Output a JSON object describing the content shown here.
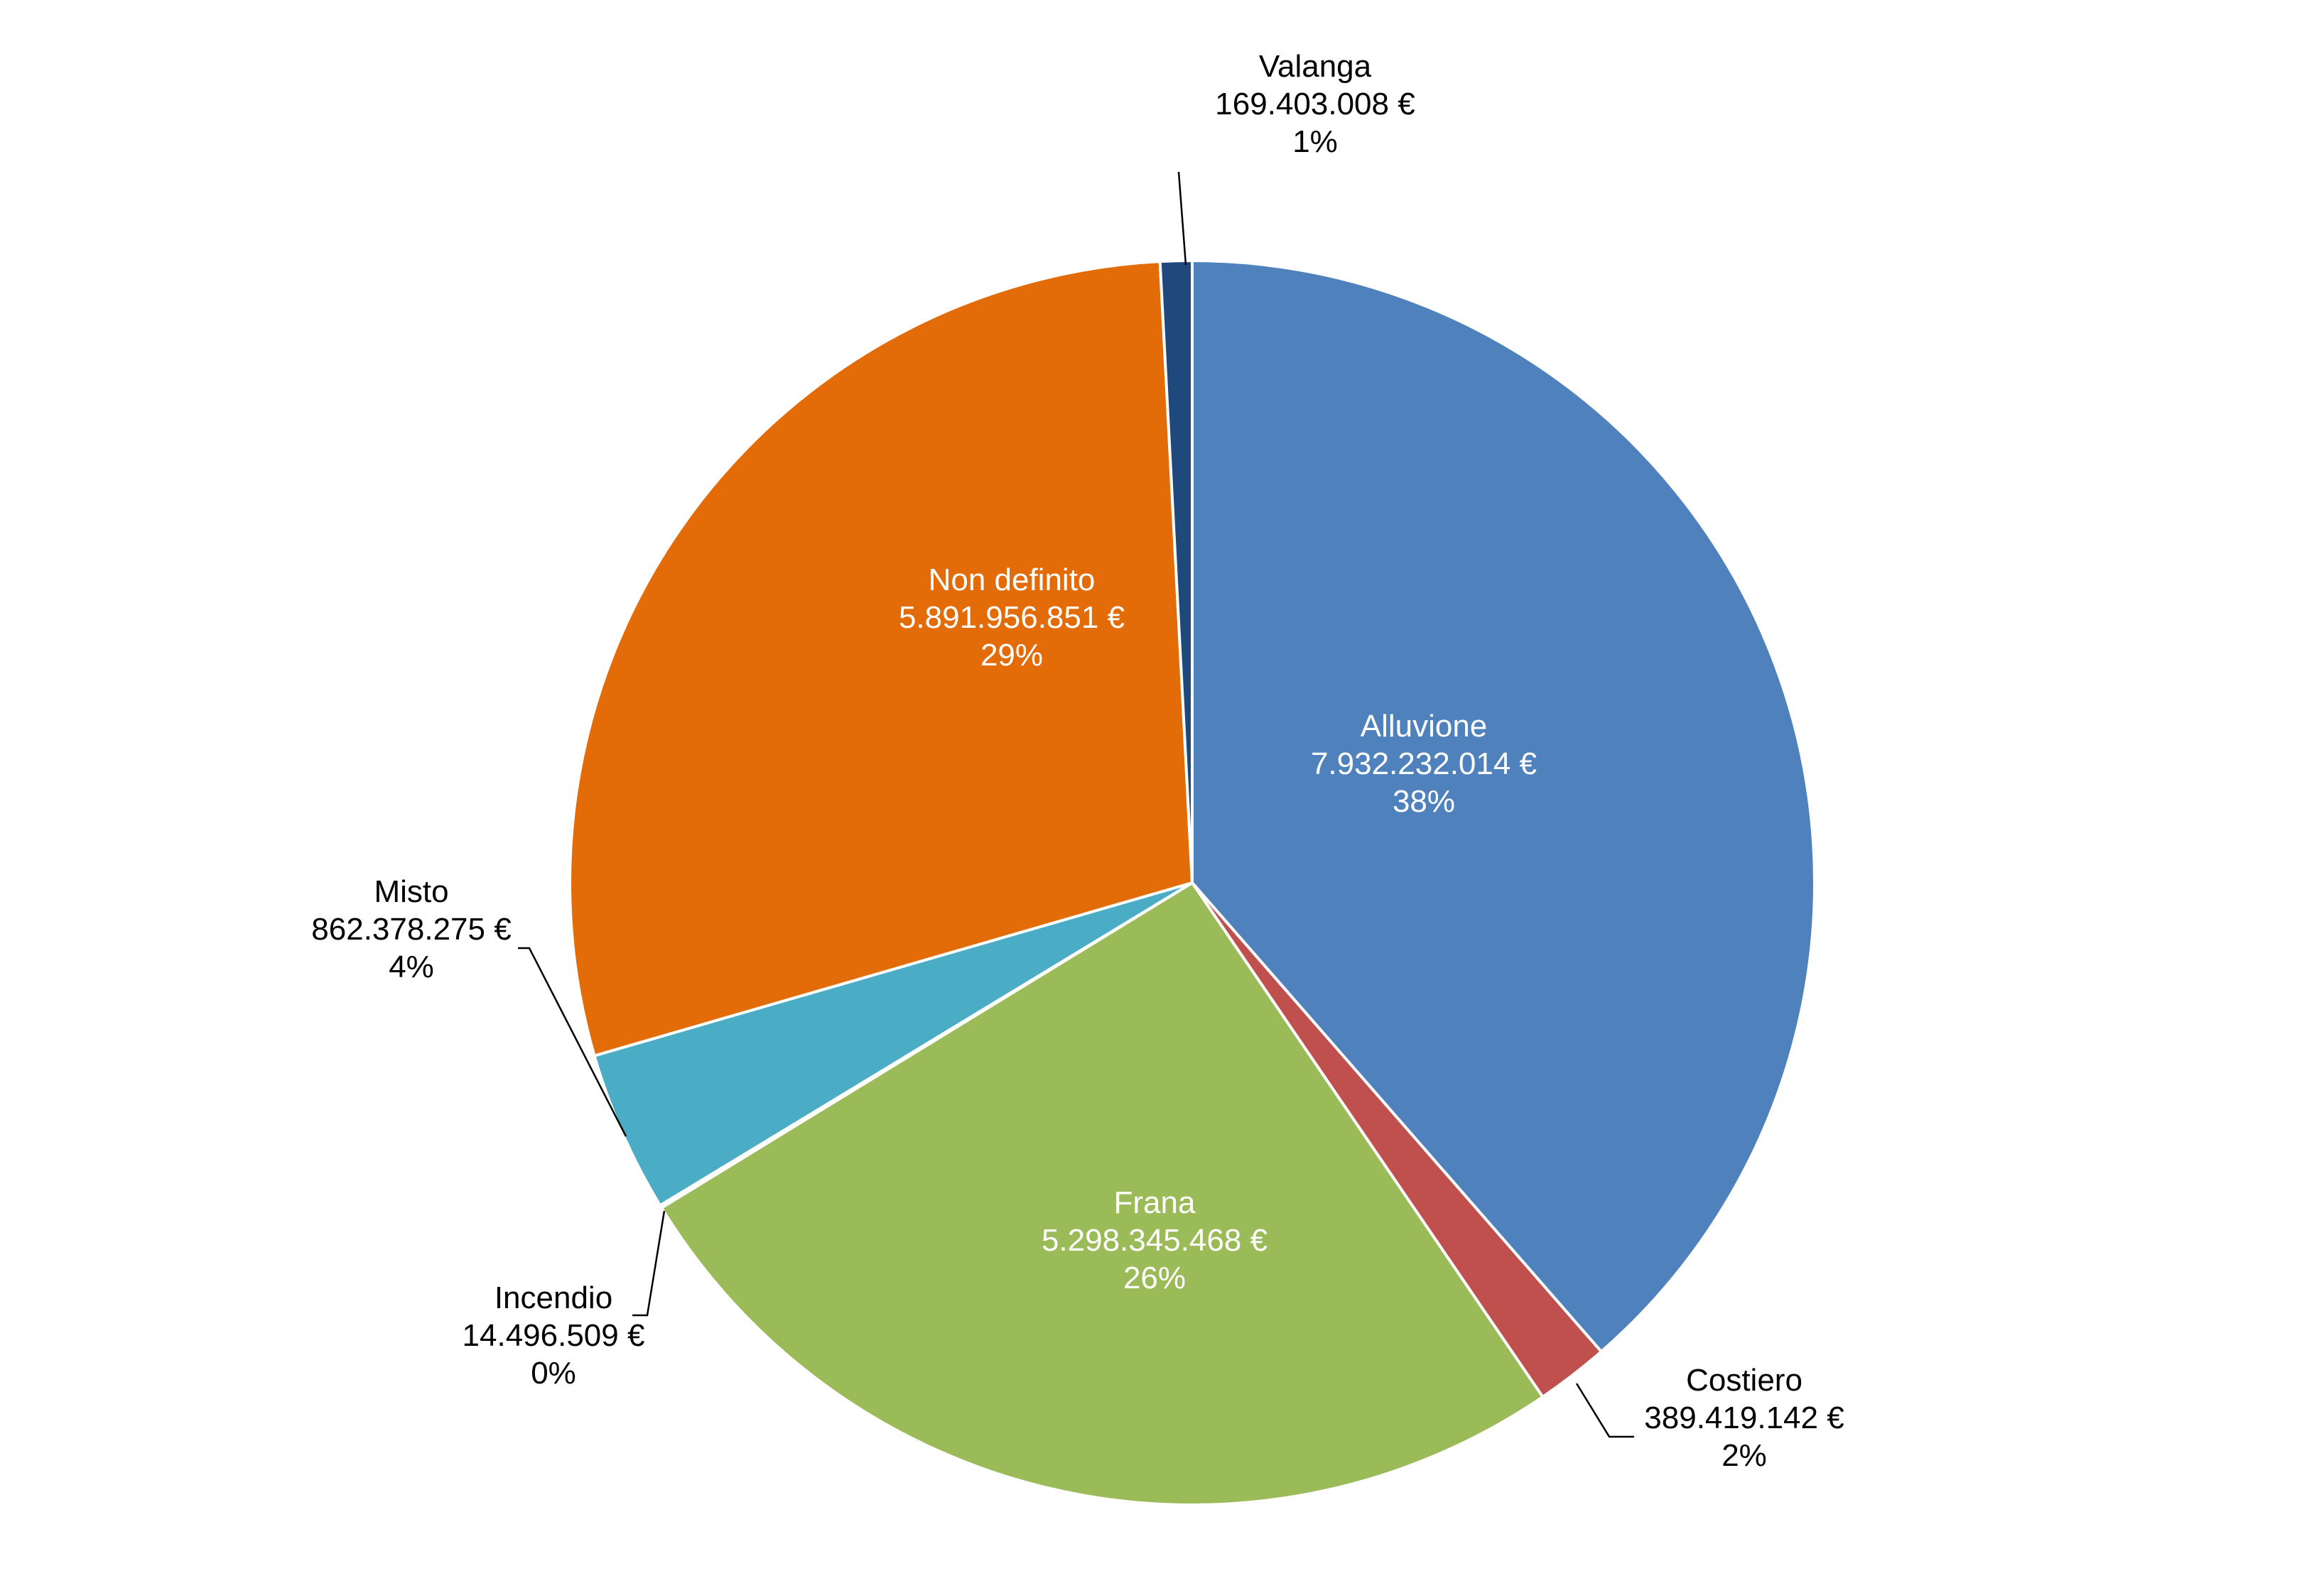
{
  "chart_data": {
    "type": "pie",
    "title": "",
    "start_angle_deg": 0,
    "direction": "clockwise",
    "slices": [
      {
        "label": "Alluvione",
        "amount": "7.932.232.014 €",
        "percent": "38%",
        "value": 7932232014,
        "color": "#4F81BD",
        "label_color": "#ffffff",
        "label_placement": "inside"
      },
      {
        "label": "Costiero",
        "amount": "389.419.142 €",
        "percent": "2%",
        "value": 389419142,
        "color": "#C0504D",
        "label_color": "#000000",
        "label_placement": "outside"
      },
      {
        "label": "Frana",
        "amount": "5.298.345.468 €",
        "percent": "26%",
        "value": 5298345468,
        "color": "#9BBB59",
        "label_color": "#ffffff",
        "label_placement": "inside"
      },
      {
        "label": "Incendio",
        "amount": "14.496.509 €",
        "percent": "0%",
        "value": 14496509,
        "color": "#8064A2",
        "label_color": "#000000",
        "label_placement": "outside"
      },
      {
        "label": "Misto",
        "amount": "862.378.275 €",
        "percent": "4%",
        "value": 862378275,
        "color": "#4BACC6",
        "label_color": "#000000",
        "label_placement": "outside"
      },
      {
        "label": "Non definito",
        "amount": "5.891.956.851 €",
        "percent": "29%",
        "value": 5891956851,
        "color": "#E36C09",
        "label_color": "#ffffff",
        "label_placement": "inside"
      },
      {
        "label": "Valanga",
        "amount": "169.403.008 €",
        "percent": "1%",
        "value": 169403008,
        "color": "#1F497D",
        "label_color": "#000000",
        "label_placement": "outside"
      }
    ]
  }
}
